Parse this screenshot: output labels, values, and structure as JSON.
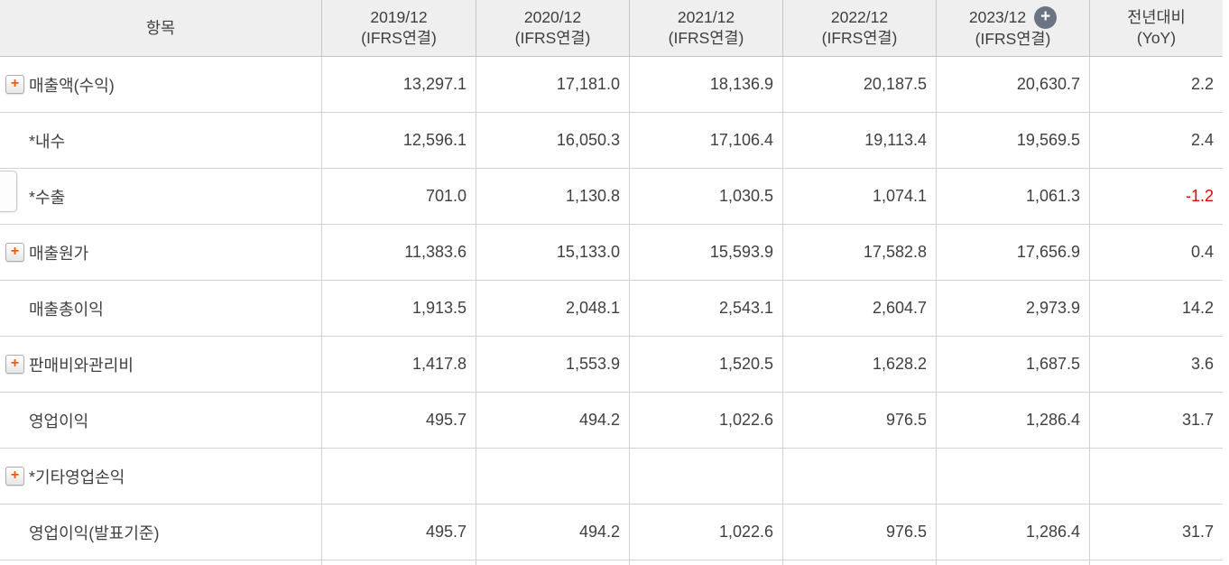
{
  "header": {
    "item_column_label": "항목",
    "period_columns": [
      {
        "period": "2019/12",
        "standard": "(IFRS연결)"
      },
      {
        "period": "2020/12",
        "standard": "(IFRS연결)"
      },
      {
        "period": "2021/12",
        "standard": "(IFRS연결)"
      },
      {
        "period": "2022/12",
        "standard": "(IFRS연결)"
      },
      {
        "period": "2023/12",
        "standard": "(IFRS연결)",
        "has_add_badge": true
      }
    ],
    "yoy_column": {
      "line1": "전년대비",
      "line2": "(YoY)"
    }
  },
  "rows": [
    {
      "label": "매출액(수익)",
      "expandable": true,
      "values": [
        "13,297.1",
        "17,181.0",
        "18,136.9",
        "20,187.5",
        "20,630.7"
      ],
      "yoy": "2.2"
    },
    {
      "label": "*내수",
      "expandable": false,
      "values": [
        "12,596.1",
        "16,050.3",
        "17,106.4",
        "19,113.4",
        "19,569.5"
      ],
      "yoy": "2.4"
    },
    {
      "label": "*수출",
      "expandable": false,
      "values": [
        "701.0",
        "1,130.8",
        "1,030.5",
        "1,074.1",
        "1,061.3"
      ],
      "yoy": "-1.2"
    },
    {
      "label": "매출원가",
      "expandable": true,
      "values": [
        "11,383.6",
        "15,133.0",
        "15,593.9",
        "17,582.8",
        "17,656.9"
      ],
      "yoy": "0.4"
    },
    {
      "label": "매출총이익",
      "expandable": false,
      "values": [
        "1,913.5",
        "2,048.1",
        "2,543.1",
        "2,604.7",
        "2,973.9"
      ],
      "yoy": "14.2"
    },
    {
      "label": "판매비와관리비",
      "expandable": true,
      "values": [
        "1,417.8",
        "1,553.9",
        "1,520.5",
        "1,628.2",
        "1,687.5"
      ],
      "yoy": "3.6"
    },
    {
      "label": "영업이익",
      "expandable": false,
      "values": [
        "495.7",
        "494.2",
        "1,022.6",
        "976.5",
        "1,286.4"
      ],
      "yoy": "31.7"
    },
    {
      "label": "*기타영업손익",
      "expandable": true,
      "values": [
        "",
        "",
        "",
        "",
        ""
      ],
      "yoy": ""
    },
    {
      "label": "영업이익(발표기준)",
      "expandable": false,
      "values": [
        "495.7",
        "494.2",
        "1,022.6",
        "976.5",
        "1,286.4"
      ],
      "yoy": "31.7"
    }
  ],
  "icons": {
    "expand_plus": "+",
    "add_plus": "+"
  },
  "colors": {
    "negative_value": "#e60000",
    "expand_plus": "#eb5a0e",
    "add_badge_bg": "#6b7482",
    "header_bg": "#efefef"
  }
}
